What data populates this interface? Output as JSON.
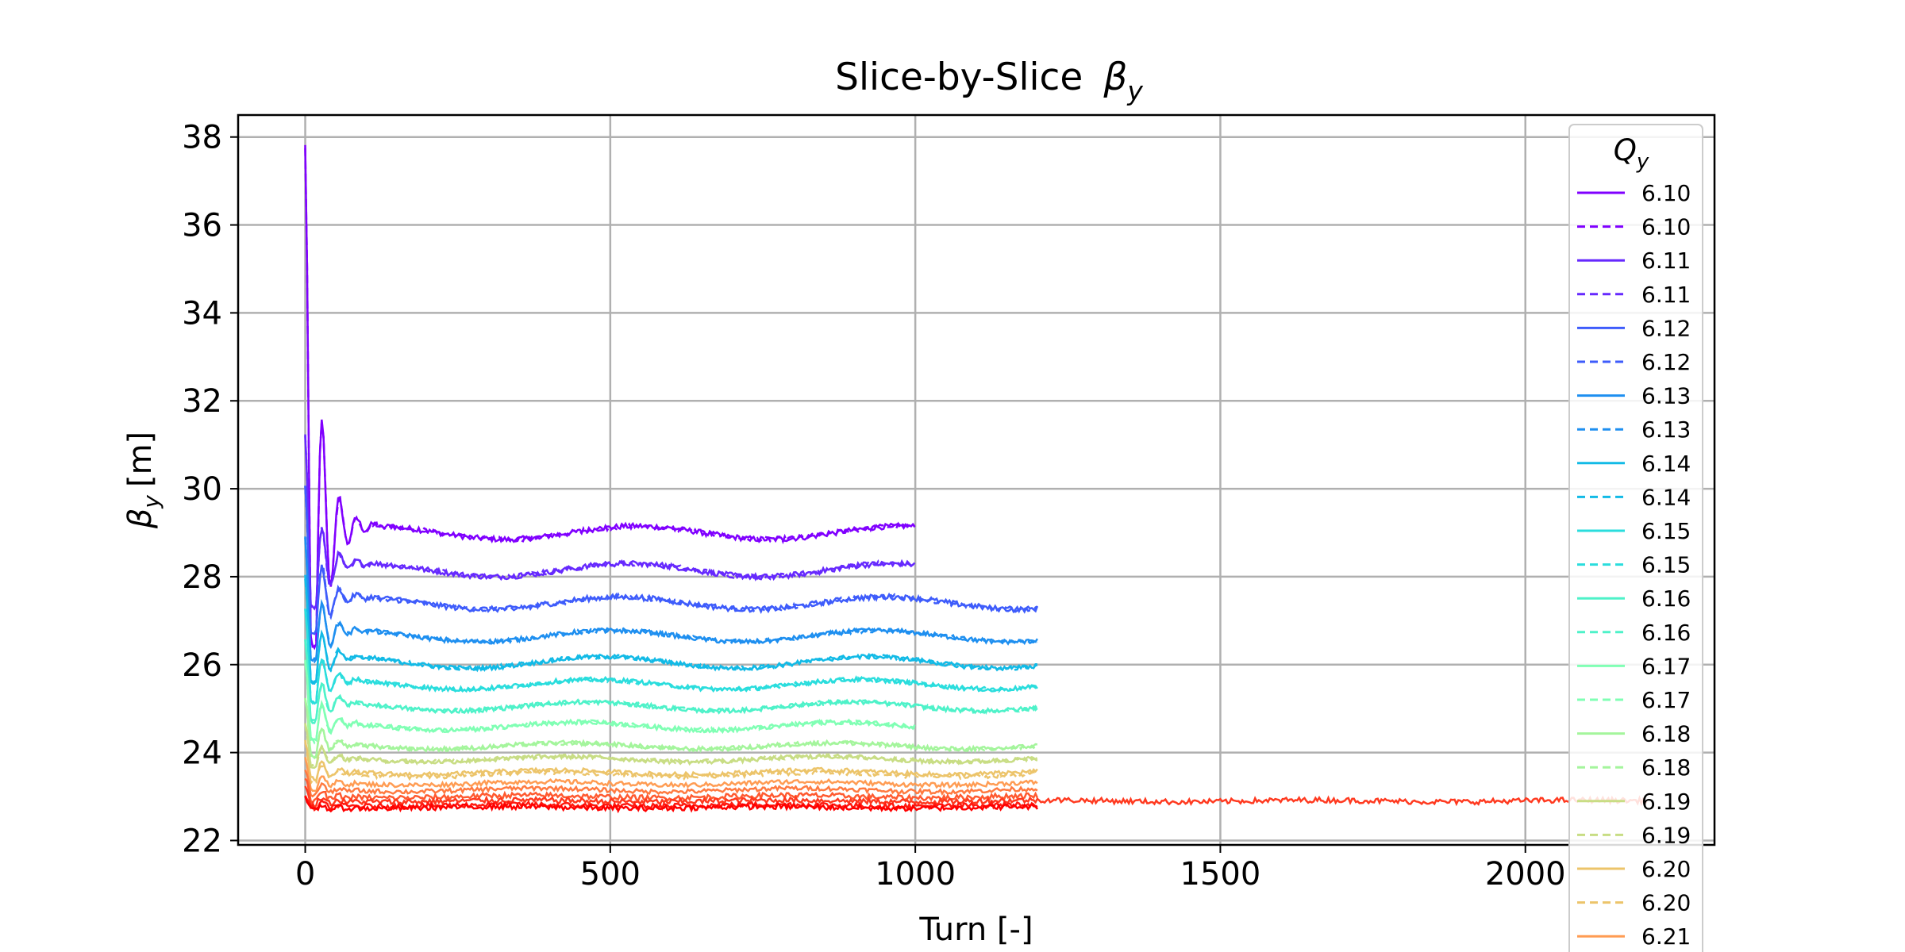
{
  "chart_data": {
    "type": "line",
    "title": "Slice-by-Slice  βy",
    "title_main": "Slice-by-Slice",
    "title_symbol": "β",
    "title_sub": "y",
    "xlabel": "Turn [-]",
    "ylabel_symbol": "β",
    "ylabel_sub": "y",
    "ylabel_unit": "[m]",
    "xlim": [
      -110,
      2310
    ],
    "ylim": [
      21.9,
      38.5
    ],
    "x_ticks": [
      0,
      500,
      1000,
      1500,
      2000
    ],
    "x_tick_labels": [
      "0",
      "500",
      "1000",
      "1500",
      "2000"
    ],
    "y_ticks": [
      22,
      24,
      26,
      28,
      30,
      32,
      34,
      36,
      38
    ],
    "y_tick_labels": [
      "22",
      "24",
      "26",
      "28",
      "30",
      "32",
      "34",
      "36",
      "38"
    ],
    "grid": true,
    "legend_position": "right, extending below axes",
    "legend_title_symbol": "Q",
    "legend_title_sub": "y",
    "series": [
      {
        "name": "6.10",
        "style": "solid",
        "color": "#8000ff",
        "end": 1000,
        "base": 29.0,
        "amp": 0.15,
        "freq": 2.3,
        "phase": 0.0,
        "peak": 37.8,
        "noise": 0.06
      },
      {
        "name": "6.10",
        "style": "dashed",
        "color": "#8000ff",
        "end": 1000,
        "base": 29.0,
        "amp": 0.15,
        "freq": 2.3,
        "phase": 0.0,
        "peak": 37.8,
        "noise": 0.06
      },
      {
        "name": "6.11",
        "style": "solid",
        "color": "#6629fe",
        "end": 1000,
        "base": 28.15,
        "amp": 0.15,
        "freq": 2.3,
        "phase": 0.2,
        "peak": 31.2,
        "noise": 0.06
      },
      {
        "name": "6.11",
        "style": "dashed",
        "color": "#6629fe",
        "end": 1000,
        "base": 28.15,
        "amp": 0.15,
        "freq": 2.3,
        "phase": 0.2,
        "peak": 31.2,
        "noise": 0.06
      },
      {
        "name": "6.12",
        "style": "solid",
        "color": "#3e5cfb",
        "end": 1200,
        "base": 27.4,
        "amp": 0.14,
        "freq": 2.3,
        "phase": 0.4,
        "peak": 30.0,
        "noise": 0.06
      },
      {
        "name": "6.12",
        "style": "dashed",
        "color": "#3e5cfb",
        "end": 1200,
        "base": 27.4,
        "amp": 0.14,
        "freq": 2.3,
        "phase": 0.4,
        "peak": 30.0,
        "noise": 0.06
      },
      {
        "name": "6.13",
        "style": "solid",
        "color": "#1e8ff0",
        "end": 1200,
        "base": 26.65,
        "amp": 0.13,
        "freq": 2.3,
        "phase": 0.6,
        "peak": 28.8,
        "noise": 0.05
      },
      {
        "name": "6.13",
        "style": "dashed",
        "color": "#1e8ff0",
        "end": 1200,
        "base": 26.65,
        "amp": 0.13,
        "freq": 2.3,
        "phase": 0.6,
        "peak": 28.8,
        "noise": 0.05
      },
      {
        "name": "6.14",
        "style": "solid",
        "color": "#12bae6",
        "end": 1200,
        "base": 26.05,
        "amp": 0.13,
        "freq": 2.3,
        "phase": 0.8,
        "peak": 27.9,
        "noise": 0.05
      },
      {
        "name": "6.14",
        "style": "dashed",
        "color": "#12bae6",
        "end": 1200,
        "base": 26.05,
        "amp": 0.13,
        "freq": 2.3,
        "phase": 0.8,
        "peak": 27.9,
        "noise": 0.05
      },
      {
        "name": "6.15",
        "style": "solid",
        "color": "#2adddd",
        "end": 1200,
        "base": 25.55,
        "amp": 0.11,
        "freq": 2.3,
        "phase": 1.0,
        "peak": 27.2,
        "noise": 0.05
      },
      {
        "name": "6.15",
        "style": "dashed",
        "color": "#2adddd",
        "end": 1200,
        "base": 25.55,
        "amp": 0.11,
        "freq": 2.3,
        "phase": 1.0,
        "peak": 27.2,
        "noise": 0.05
      },
      {
        "name": "6.16",
        "style": "solid",
        "color": "#4ef2c9",
        "end": 1200,
        "base": 25.05,
        "amp": 0.1,
        "freq": 2.3,
        "phase": 1.2,
        "peak": 26.5,
        "noise": 0.05
      },
      {
        "name": "6.16",
        "style": "dashed",
        "color": "#4ef2c9",
        "end": 1200,
        "base": 25.05,
        "amp": 0.1,
        "freq": 2.3,
        "phase": 1.2,
        "peak": 26.5,
        "noise": 0.05
      },
      {
        "name": "6.17",
        "style": "solid",
        "color": "#80ffb4",
        "end": 1000,
        "base": 24.6,
        "amp": 0.09,
        "freq": 2.3,
        "phase": 1.4,
        "peak": 26.0,
        "noise": 0.05
      },
      {
        "name": "6.17",
        "style": "dashed",
        "color": "#80ffb4",
        "end": 1000,
        "base": 24.6,
        "amp": 0.09,
        "freq": 2.3,
        "phase": 1.4,
        "peak": 26.0,
        "noise": 0.05
      },
      {
        "name": "6.18",
        "style": "solid",
        "color": "#a4f59c",
        "end": 1200,
        "base": 24.15,
        "amp": 0.07,
        "freq": 2.3,
        "phase": 1.6,
        "peak": 25.2,
        "noise": 0.05
      },
      {
        "name": "6.18",
        "style": "dashed",
        "color": "#a4f59c",
        "end": 1200,
        "base": 24.15,
        "amp": 0.07,
        "freq": 2.3,
        "phase": 1.6,
        "peak": 25.2,
        "noise": 0.05
      },
      {
        "name": "6.19",
        "style": "solid",
        "color": "#c8dd84",
        "end": 1200,
        "base": 23.85,
        "amp": 0.06,
        "freq": 2.3,
        "phase": 1.8,
        "peak": 24.6,
        "noise": 0.05
      },
      {
        "name": "6.19",
        "style": "dashed",
        "color": "#c8dd84",
        "end": 1200,
        "base": 23.85,
        "amp": 0.06,
        "freq": 2.3,
        "phase": 1.8,
        "peak": 24.6,
        "noise": 0.05
      },
      {
        "name": "6.20",
        "style": "solid",
        "color": "#ecc46a",
        "end": 1200,
        "base": 23.55,
        "amp": 0.05,
        "freq": 2.3,
        "phase": 2.0,
        "peak": 24.2,
        "noise": 0.05
      },
      {
        "name": "6.20",
        "style": "dashed",
        "color": "#ecc46a",
        "end": 1200,
        "base": 23.5,
        "amp": 0.05,
        "freq": 2.3,
        "phase": 2.0,
        "peak": 24.2,
        "noise": 0.05
      },
      {
        "name": "6.21",
        "style": "solid",
        "color": "#ff9c53",
        "end": 1200,
        "base": 23.3,
        "amp": 0.04,
        "freq": 2.3,
        "phase": 2.2,
        "peak": 23.9,
        "noise": 0.05
      },
      {
        "name": "",
        "style": "solid",
        "color": "#ff7a40",
        "end": 1200,
        "base": 23.15,
        "amp": 0.04,
        "freq": 2.3,
        "phase": 2.4,
        "peak": 23.6,
        "noise": 0.05
      },
      {
        "name": "",
        "style": "solid",
        "color": "#ff5a30",
        "end": 1200,
        "base": 23.0,
        "amp": 0.03,
        "freq": 2.3,
        "phase": 2.6,
        "peak": 23.4,
        "noise": 0.06
      },
      {
        "name": "",
        "style": "solid",
        "color": "#ff3a20",
        "end": 2200,
        "base": 22.9,
        "amp": 0.02,
        "freq": 2.3,
        "phase": 2.8,
        "peak": 23.2,
        "noise": 0.06
      },
      {
        "name": "",
        "style": "solid",
        "color": "#ff1a10",
        "end": 1200,
        "base": 22.8,
        "amp": 0.02,
        "freq": 2.3,
        "phase": 3.0,
        "peak": 23.0,
        "noise": 0.06
      },
      {
        "name": "",
        "style": "solid",
        "color": "#ff0000",
        "end": 1200,
        "base": 22.75,
        "amp": 0.02,
        "freq": 2.3,
        "phase": 3.2,
        "peak": 22.95,
        "noise": 0.06
      }
    ]
  }
}
